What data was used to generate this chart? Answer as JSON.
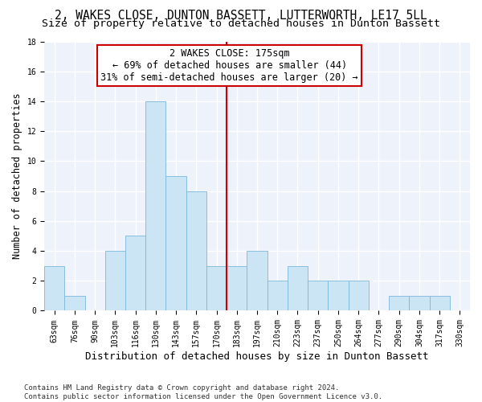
{
  "title": "2, WAKES CLOSE, DUNTON BASSETT, LUTTERWORTH, LE17 5LL",
  "subtitle": "Size of property relative to detached houses in Dunton Bassett",
  "xlabel": "Distribution of detached houses by size in Dunton Bassett",
  "ylabel": "Number of detached properties",
  "bar_color": "#cce5f5",
  "bar_edge_color": "#7ab8d8",
  "background_color": "#eef2fb",
  "grid_color": "#ffffff",
  "bin_labels": [
    "63sqm",
    "76sqm",
    "90sqm",
    "103sqm",
    "116sqm",
    "130sqm",
    "143sqm",
    "157sqm",
    "170sqm",
    "183sqm",
    "197sqm",
    "210sqm",
    "223sqm",
    "237sqm",
    "250sqm",
    "264sqm",
    "277sqm",
    "290sqm",
    "304sqm",
    "317sqm",
    "330sqm"
  ],
  "bar_heights": [
    3,
    1,
    0,
    4,
    5,
    14,
    9,
    8,
    3,
    3,
    4,
    2,
    3,
    2,
    2,
    2,
    0,
    1,
    1,
    1,
    0
  ],
  "red_line_x": 8.5,
  "annotation_line1": "2 WAKES CLOSE: 175sqm",
  "annotation_line2": "← 69% of detached houses are smaller (44)",
  "annotation_line3": "31% of semi-detached houses are larger (20) →",
  "ylim": [
    0,
    18
  ],
  "yticks": [
    0,
    2,
    4,
    6,
    8,
    10,
    12,
    14,
    16,
    18
  ],
  "footer": "Contains HM Land Registry data © Crown copyright and database right 2024.\nContains public sector information licensed under the Open Government Licence v3.0.",
  "title_fontsize": 10.5,
  "subtitle_fontsize": 9.5,
  "xlabel_fontsize": 9,
  "ylabel_fontsize": 8.5,
  "tick_fontsize": 7,
  "annotation_fontsize": 8.5,
  "footer_fontsize": 6.5
}
